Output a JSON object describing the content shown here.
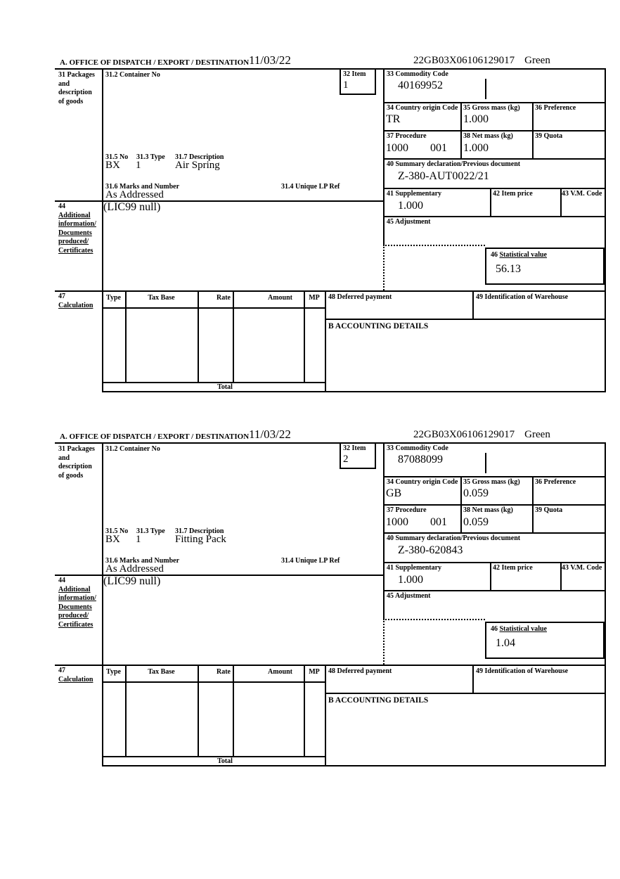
{
  "sections": [
    {
      "header": {
        "office": "A. OFFICE OF DISPATCH / EXPORT / DESTINATION",
        "date": "11/03/22",
        "mrn": "22GB03X06106129017",
        "routing": "Green"
      },
      "box31": {
        "label": "31 Packages and description of goods"
      },
      "box31_2": {
        "label": "31.2 Container No",
        "value": ""
      },
      "box32": {
        "label": "32 Item",
        "value": "1"
      },
      "box33": {
        "label": "33 Commodity Code",
        "value": "40169952"
      },
      "box34": {
        "label": "34 Country origin Code",
        "value": "TR"
      },
      "box35": {
        "label": "35 Gross mass (kg)",
        "value": "1.000"
      },
      "box36": {
        "label": "36 Preference",
        "value": ""
      },
      "box37": {
        "label": "37 Procedure",
        "value_a": "1000",
        "value_b": "001"
      },
      "box38": {
        "label": "38 Net mass (kg)",
        "value": "1.000"
      },
      "box39": {
        "label": "39 Quota",
        "value": ""
      },
      "box31_5": {
        "label": "31.5 No",
        "value": "BX"
      },
      "box31_3": {
        "label": "31.3 Type",
        "value": "1"
      },
      "box31_7": {
        "label": "31.7 Description",
        "value": "Air Spring"
      },
      "box40": {
        "label": "40 Summary declaration/Previous document",
        "value": "Z-380-AUT0022/21"
      },
      "box31_6": {
        "label": "31.6 Marks and Number",
        "value": "As Addressed"
      },
      "box31_4": {
        "label": "31.4 Unique LP Ref"
      },
      "box41": {
        "label": "41 Supplementary",
        "value": "1.000"
      },
      "box42": {
        "label": "42 Item price",
        "value": ""
      },
      "box43": {
        "label": "43 V.M. Code",
        "value": ""
      },
      "box44": {
        "num": "44",
        "label": "Additional information/ Documents produced/ Certificates",
        "value": "(LIC99 null)"
      },
      "box45": {
        "label": "45 Adjustment",
        "value": ""
      },
      "box46": {
        "num": "46",
        "label": "Statistical value",
        "value": "56.13"
      },
      "box47": {
        "num": "47",
        "label": "Calculation",
        "col_type": "Type",
        "col_tax_base": "Tax Base",
        "col_rate": "Rate",
        "col_amount": "Amount",
        "col_mp": "MP",
        "total_label": "Total"
      },
      "box48": {
        "label": "48 Deferred payment",
        "value": ""
      },
      "box49": {
        "label": "49 Identification of Warehouse",
        "value": ""
      },
      "boxB": {
        "label": "B ACCOUNTING DETAILS"
      }
    },
    {
      "header": {
        "office": "A. OFFICE OF DISPATCH / EXPORT / DESTINATION",
        "date": "11/03/22",
        "mrn": "22GB03X06106129017",
        "routing": "Green"
      },
      "box31": {
        "label": "31 Packages and description of goods"
      },
      "box31_2": {
        "label": "31.2 Container No",
        "value": ""
      },
      "box32": {
        "label": "32 Item",
        "value": "2"
      },
      "box33": {
        "label": "33 Commodity Code",
        "value": "87088099"
      },
      "box34": {
        "label": "34 Country origin Code",
        "value": "GB"
      },
      "box35": {
        "label": "35 Gross mass (kg)",
        "value": "0.059"
      },
      "box36": {
        "label": "36 Preference",
        "value": ""
      },
      "box37": {
        "label": "37 Procedure",
        "value_a": "1000",
        "value_b": "001"
      },
      "box38": {
        "label": "38 Net mass (kg)",
        "value": "0.059"
      },
      "box39": {
        "label": "39 Quota",
        "value": ""
      },
      "box31_5": {
        "label": "31.5 No",
        "value": "BX"
      },
      "box31_3": {
        "label": "31.3 Type",
        "value": "1"
      },
      "box31_7": {
        "label": "31.7 Description",
        "value": "Fitting Pack"
      },
      "box40": {
        "label": "40 Summary declaration/Previous document",
        "value": "Z-380-620843"
      },
      "box31_6": {
        "label": "31.6 Marks and Number",
        "value": "As Addressed"
      },
      "box31_4": {
        "label": "31.4 Unique LP Ref"
      },
      "box41": {
        "label": "41 Supplementary",
        "value": "1.000"
      },
      "box42": {
        "label": "42 Item price",
        "value": ""
      },
      "box43": {
        "label": "43 V.M. Code",
        "value": ""
      },
      "box44": {
        "num": "44",
        "label": "Additional information/ Documents produced/ Certificates",
        "value": "(LIC99 null)"
      },
      "box45": {
        "label": "45 Adjustment",
        "value": ""
      },
      "box46": {
        "num": "46",
        "label": "Statistical value",
        "value": "1.04"
      },
      "box47": {
        "num": "47",
        "label": "Calculation",
        "col_type": "Type",
        "col_tax_base": "Tax Base",
        "col_rate": "Rate",
        "col_amount": "Amount",
        "col_mp": "MP",
        "total_label": "Total"
      },
      "box48": {
        "label": "48 Deferred payment",
        "value": ""
      },
      "box49": {
        "label": "49 Identification of Warehouse",
        "value": ""
      },
      "boxB": {
        "label": "B ACCOUNTING DETAILS"
      }
    }
  ]
}
